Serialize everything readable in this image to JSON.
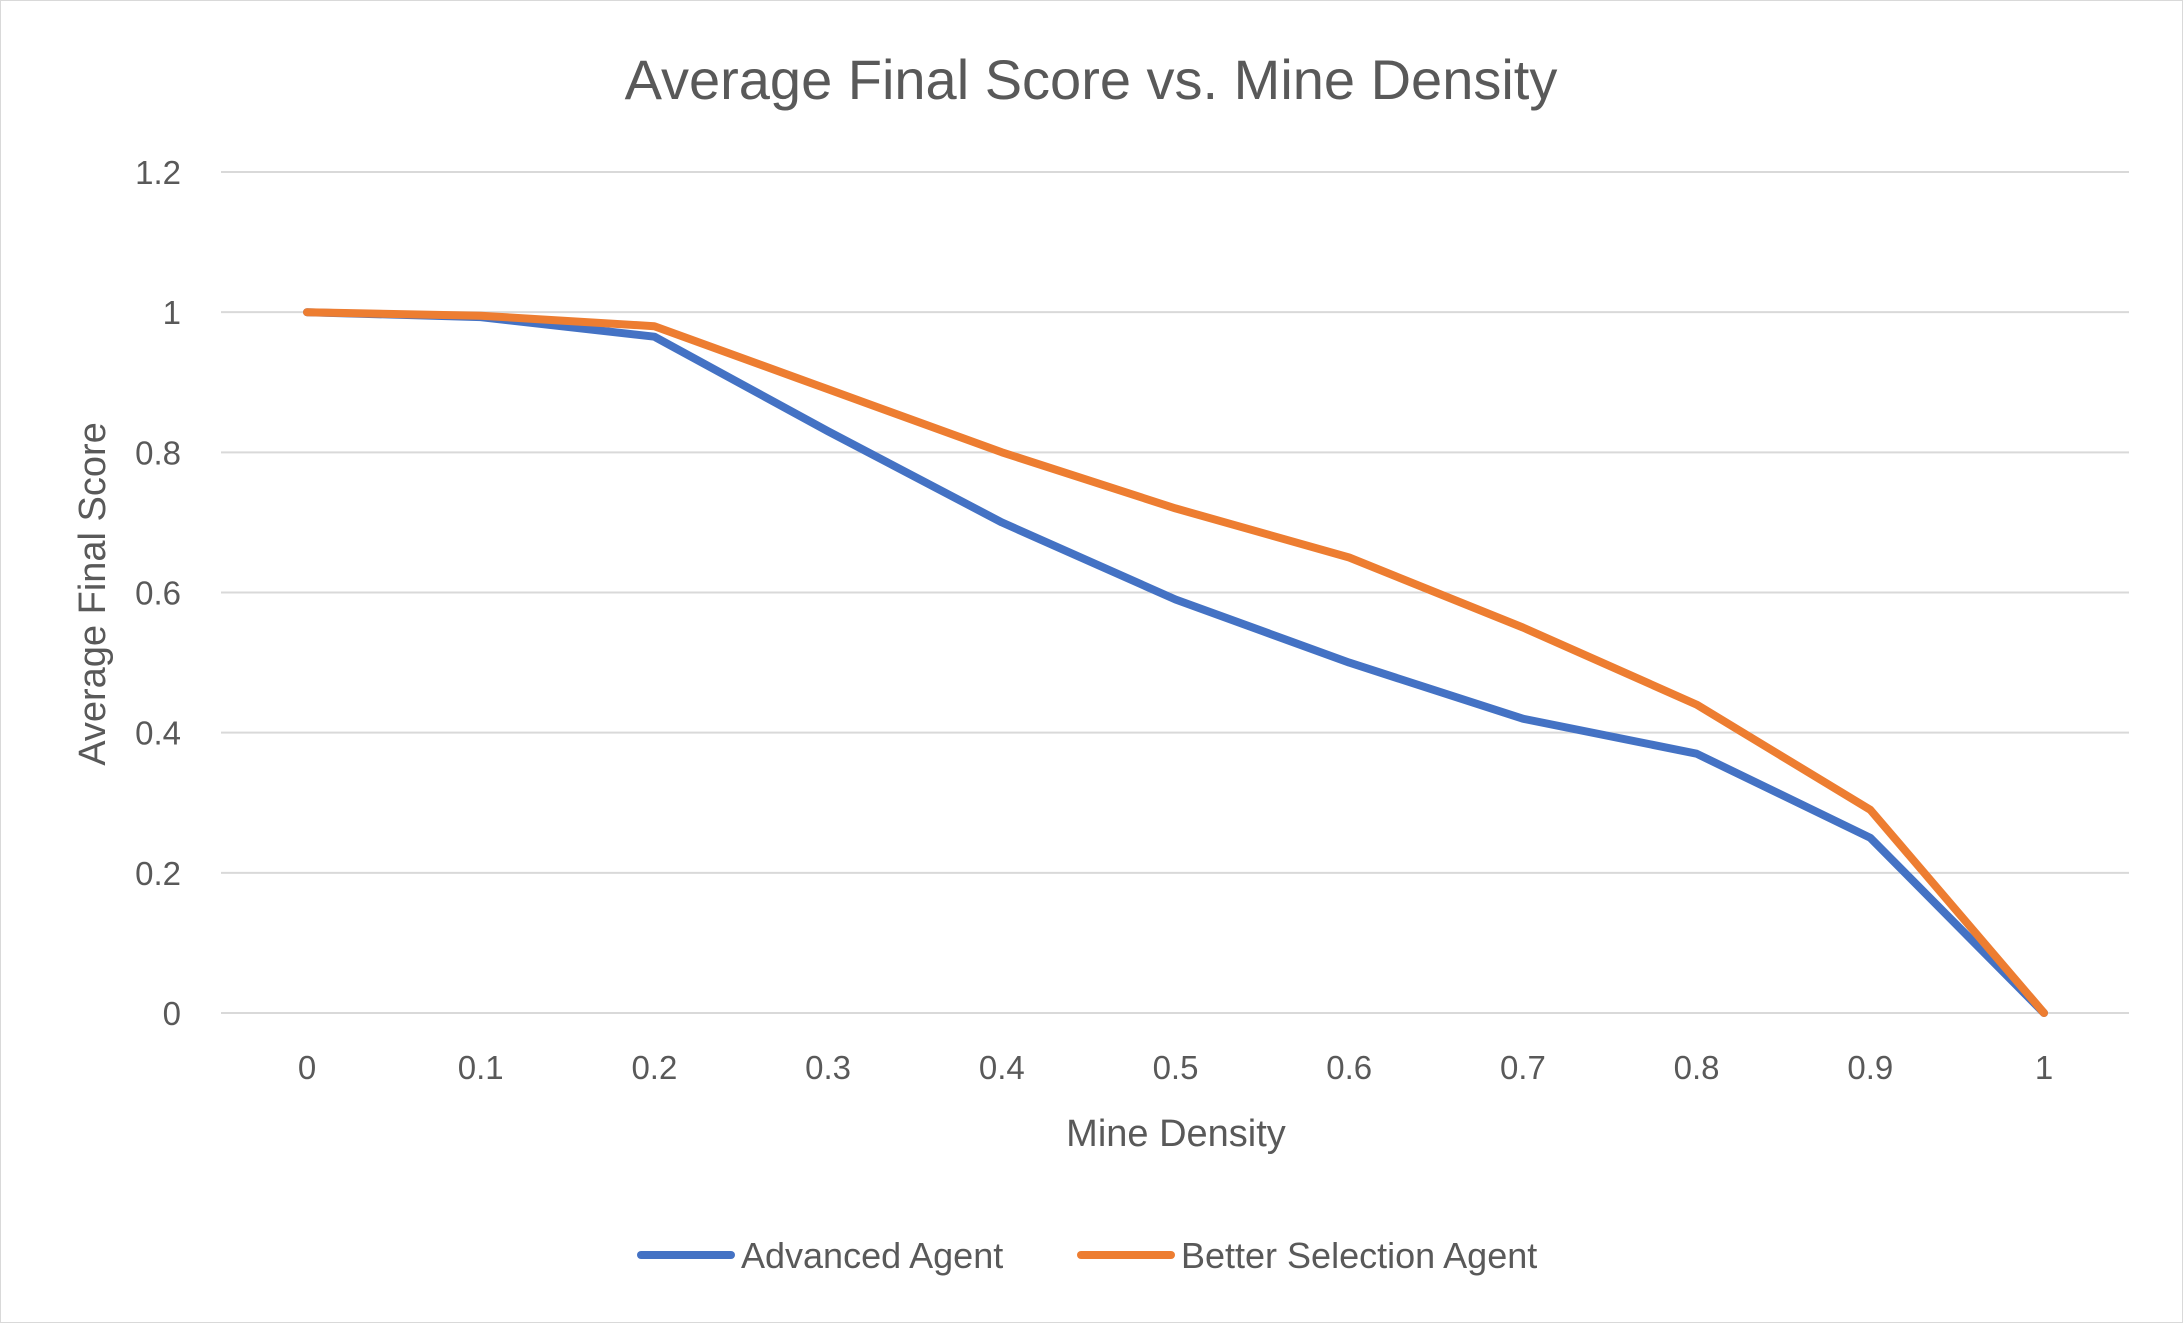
{
  "chart_data": {
    "type": "line",
    "title": "Average Final Score vs. Mine Density",
    "xlabel": "Mine Density",
    "ylabel": "Average Final Score",
    "categories": [
      "0",
      "0.1",
      "0.2",
      "0.3",
      "0.4",
      "0.5",
      "0.6",
      "0.7",
      "0.8",
      "0.9",
      "1"
    ],
    "ylim": [
      0,
      1.2
    ],
    "yticks": [
      "0",
      "0.2",
      "0.4",
      "0.6",
      "0.8",
      "1",
      "1.2"
    ],
    "grid": true,
    "legend_position": "bottom",
    "series": [
      {
        "name": "Advanced Agent",
        "color": "#4472c4",
        "values": [
          1.0,
          0.993,
          0.965,
          0.83,
          0.7,
          0.59,
          0.5,
          0.42,
          0.37,
          0.25,
          0.0
        ]
      },
      {
        "name": "Better Selection Agent",
        "color": "#ed7d31",
        "values": [
          1.0,
          0.995,
          0.98,
          0.89,
          0.8,
          0.72,
          0.65,
          0.55,
          0.44,
          0.29,
          0.0
        ]
      }
    ]
  }
}
